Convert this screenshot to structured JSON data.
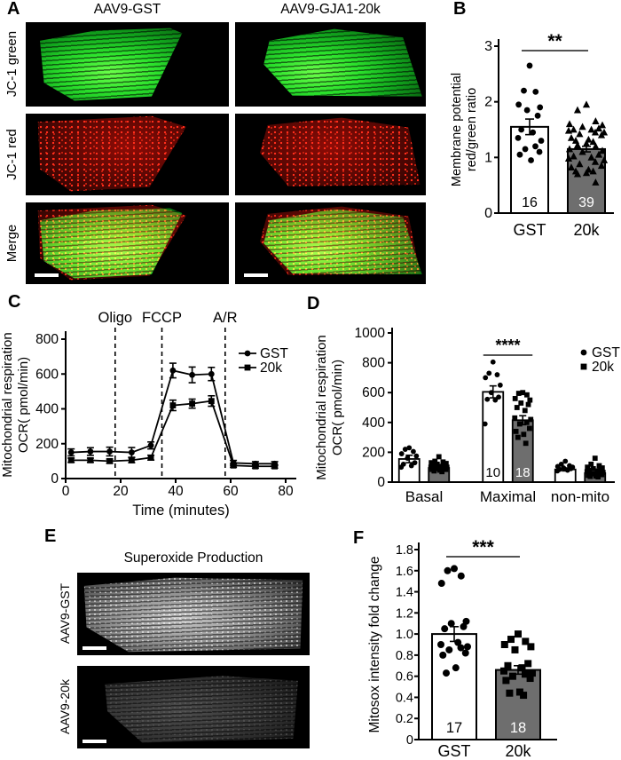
{
  "panels": {
    "A": {
      "label": "A",
      "columns": [
        "AAV9-GST",
        "AAV9-GJA1-20k"
      ],
      "rows": [
        "JC-1 green",
        "JC-1 red",
        "Merge"
      ]
    },
    "B": {
      "label": "B"
    },
    "C": {
      "label": "C"
    },
    "D": {
      "label": "D"
    },
    "E": {
      "label": "E",
      "title": "Superoxide Production",
      "rows": [
        "AAV9-GST",
        "AAV9-20k"
      ]
    },
    "F": {
      "label": "F"
    }
  },
  "colors": {
    "jc1_green": "#2be12c",
    "jc1_red": "#e02211",
    "bar_gst_fill": "#ffffff",
    "bar_20k_fill": "#6e6e6e",
    "axis": "#000000",
    "sig_line": "#3c3c3c"
  },
  "chart_data": [
    {
      "panel": "B",
      "type": "bar",
      "categories": [
        "GST",
        "20k"
      ],
      "values": [
        1.55,
        1.15
      ],
      "errors": [
        0.14,
        0.05
      ],
      "n_labels": [
        "16",
        "39"
      ],
      "n_label_colors": [
        "#000000",
        "#ffffff"
      ],
      "bar_fills": [
        "#ffffff",
        "#6e6e6e"
      ],
      "markers": [
        "circle",
        "triangle"
      ],
      "scatter": [
        [
          2.65,
          2.2,
          2.18,
          1.95,
          1.9,
          1.85,
          1.75,
          1.5,
          1.45,
          1.35,
          1.3,
          1.2,
          1.15,
          1.1,
          1.05,
          0.95
        ],
        [
          1.95,
          1.85,
          1.65,
          1.6,
          1.58,
          1.55,
          1.52,
          1.5,
          1.5,
          1.48,
          1.45,
          1.45,
          1.42,
          1.4,
          1.35,
          1.32,
          1.3,
          1.28,
          1.25,
          1.22,
          1.2,
          1.15,
          1.12,
          1.1,
          1.05,
          1.02,
          1.0,
          0.98,
          0.95,
          0.92,
          0.88,
          0.85,
          0.82,
          0.78,
          0.75,
          0.75,
          0.72,
          0.7,
          0.55
        ]
      ],
      "significance": "**",
      "ylabel_lines": [
        "Membrane potential",
        "red/green ratio"
      ],
      "ylim": [
        0,
        3
      ],
      "yticks": [
        0,
        1,
        2,
        3
      ],
      "ytick_decimals": 0
    },
    {
      "panel": "C",
      "type": "line",
      "x": [
        2,
        9,
        16,
        24,
        31,
        39,
        46,
        53,
        61,
        69,
        76
      ],
      "series": [
        {
          "name": "GST",
          "marker": "circle",
          "values": [
            150,
            155,
            155,
            150,
            190,
            620,
            595,
            600,
            90,
            85,
            85
          ],
          "errors": [
            20,
            22,
            25,
            28,
            20,
            42,
            45,
            38,
            14,
            12,
            12
          ]
        },
        {
          "name": "20k",
          "marker": "square",
          "values": [
            105,
            105,
            100,
            105,
            120,
            420,
            430,
            445,
            75,
            70,
            70
          ],
          "errors": [
            12,
            12,
            12,
            14,
            14,
            30,
            26,
            30,
            10,
            10,
            10
          ]
        }
      ],
      "events": [
        {
          "label": "Oligo",
          "x": 18
        },
        {
          "label": "FCCP",
          "x": 35
        },
        {
          "label": "A/R",
          "x": 58
        }
      ],
      "legend": [
        "GST",
        "20k"
      ],
      "xlabel": "Time (minutes)",
      "ylabel_lines": [
        "Mitochondrial respiration",
        "OCR( pmol/min)"
      ],
      "xlim": [
        0,
        80
      ],
      "ylim": [
        0,
        800
      ],
      "xticks": [
        0,
        20,
        40,
        60,
        80
      ],
      "yticks": [
        0,
        200,
        400,
        600,
        800
      ],
      "ytick_decimals": 0
    },
    {
      "panel": "D",
      "type": "grouped-bar",
      "categories": [
        "Basal",
        "Maximal",
        "non-mito"
      ],
      "series": [
        {
          "name": "GST",
          "marker": "circle",
          "fill": "#ffffff",
          "values": [
            155,
            605,
            85
          ],
          "errors": [
            25,
            40,
            10
          ],
          "scatter": [
            [
              230,
              220,
              205,
              190,
              175,
              160,
              130,
              120,
              110,
              100
            ],
            [
              805,
              730,
              720,
              700,
              650,
              600,
              570,
              555,
              550,
              390
            ],
            [
              140,
              120,
              110,
              105,
              100,
              95,
              90,
              85,
              80,
              75
            ]
          ]
        },
        {
          "name": "20k",
          "marker": "square",
          "fill": "#6e6e6e",
          "values": [
            95,
            415,
            60
          ],
          "errors": [
            10,
            30,
            8
          ],
          "scatter": [
            [
              170,
              140,
              135,
              130,
              125,
              120,
              115,
              110,
              105,
              100,
              100,
              95,
              90,
              85,
              85,
              80,
              75,
              70
            ],
            [
              600,
              595,
              585,
              560,
              550,
              530,
              520,
              500,
              480,
              430,
              420,
              400,
              390,
              360,
              340,
              320,
              300,
              260
            ],
            [
              160,
              120,
              110,
              100,
              95,
              90,
              85,
              80,
              75,
              70,
              65,
              60,
              55,
              50,
              45,
              40,
              38,
              35
            ]
          ]
        }
      ],
      "legend": [
        "GST",
        "20k"
      ],
      "n_labels": {
        "category": "Maximal",
        "values": [
          "10",
          "18"
        ],
        "colors": [
          "#000000",
          "#ffffff"
        ]
      },
      "significance": {
        "category": "Maximal",
        "stars": "****"
      },
      "ylabel_lines": [
        "Mitochondrial respiration",
        "OCR( pmol/min)"
      ],
      "ylim": [
        0,
        1000
      ],
      "yticks": [
        0,
        200,
        400,
        600,
        800,
        1000
      ],
      "ytick_decimals": 0
    },
    {
      "panel": "F",
      "type": "bar",
      "categories": [
        "GST",
        "20k"
      ],
      "values": [
        1.0,
        0.66
      ],
      "errors": [
        0.07,
        0.04
      ],
      "n_labels": [
        "17",
        "18"
      ],
      "n_label_colors": [
        "#000000",
        "#ffffff"
      ],
      "bar_fills": [
        "#ffffff",
        "#6e6e6e"
      ],
      "markers": [
        "circle",
        "square"
      ],
      "scatter": [
        [
          1.62,
          1.6,
          1.55,
          1.48,
          1.12,
          1.1,
          1.07,
          1.05,
          0.92,
          0.9,
          0.88,
          0.87,
          0.85,
          0.82,
          0.8,
          0.68,
          0.63
        ],
        [
          1.0,
          0.95,
          0.93,
          0.9,
          0.88,
          0.85,
          0.72,
          0.7,
          0.68,
          0.65,
          0.63,
          0.62,
          0.6,
          0.58,
          0.56,
          0.45,
          0.44,
          0.42
        ]
      ],
      "significance": "***",
      "ylabel_lines": [
        "Mitosox intensity fold change"
      ],
      "ylim": [
        0,
        1.8
      ],
      "yticks": [
        0,
        0.2,
        0.4,
        0.6,
        0.8,
        1.0,
        1.2,
        1.4,
        1.6,
        1.8
      ],
      "ytick_decimals": 1
    }
  ]
}
